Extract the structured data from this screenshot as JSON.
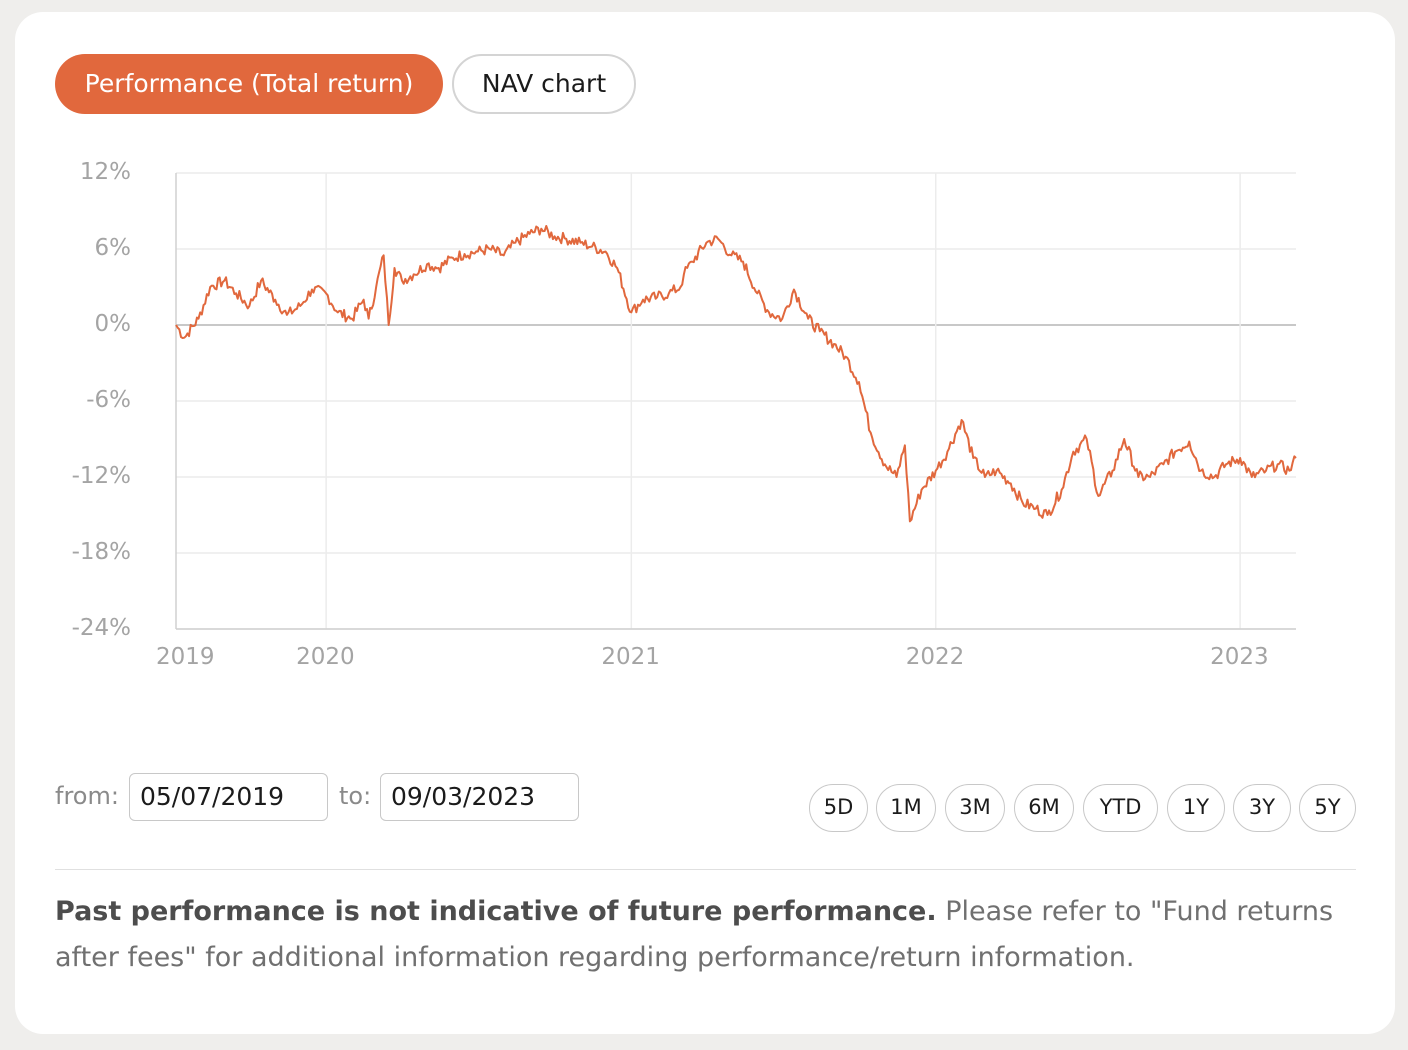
{
  "tabs": {
    "performance": "Performance (Total return)",
    "nav": "NAV chart"
  },
  "chart_data": {
    "type": "line",
    "title": "",
    "xlabel": "",
    "ylabel": "",
    "ylim": [
      -24,
      12
    ],
    "y_ticks": [
      "12%",
      "6%",
      "0%",
      "-6%",
      "-12%",
      "-18%",
      "-24%"
    ],
    "x_ticks": [
      "2019",
      "2020",
      "2021",
      "2022",
      "2023"
    ],
    "grid": true,
    "line_color": "#e1683d",
    "x_range": [
      "2019-07-05",
      "2023-03-09"
    ],
    "series": [
      {
        "x": [
          "2019-07-05",
          "2019-07-15",
          "2019-08-01",
          "2019-08-15",
          "2019-09-01",
          "2019-09-15",
          "2019-10-01",
          "2019-10-15",
          "2019-11-01",
          "2019-11-15",
          "2019-12-01",
          "2019-12-15",
          "2020-01-01",
          "2020-01-15",
          "2020-02-01",
          "2020-02-15",
          "2020-02-21",
          "2020-03-01",
          "2020-03-10",
          "2020-03-16",
          "2020-03-23",
          "2020-04-01",
          "2020-04-15",
          "2020-05-01",
          "2020-05-15",
          "2020-06-01",
          "2020-06-15",
          "2020-07-01",
          "2020-07-15",
          "2020-08-01",
          "2020-08-15",
          "2020-09-01",
          "2020-09-15",
          "2020-10-01",
          "2020-10-15",
          "2020-11-01",
          "2020-11-15",
          "2020-12-01",
          "2020-12-15",
          "2021-01-01",
          "2021-01-15",
          "2021-02-01",
          "2021-02-15",
          "2021-03-01",
          "2021-03-05",
          "2021-03-15",
          "2021-04-01",
          "2021-04-15",
          "2021-05-01",
          "2021-05-15",
          "2021-06-01",
          "2021-06-15",
          "2021-07-01",
          "2021-07-15",
          "2021-08-01",
          "2021-08-15",
          "2021-09-01",
          "2021-09-15",
          "2021-10-01",
          "2021-10-15",
          "2021-11-01",
          "2021-11-15",
          "2021-11-25",
          "2021-12-01",
          "2021-12-15",
          "2022-01-01",
          "2022-01-15",
          "2022-02-01",
          "2022-02-15",
          "2022-03-01",
          "2022-03-15",
          "2022-04-01",
          "2022-04-15",
          "2022-05-01",
          "2022-05-15",
          "2022-06-01",
          "2022-06-15",
          "2022-07-01",
          "2022-07-15",
          "2022-08-01",
          "2022-08-15",
          "2022-09-01",
          "2022-09-15",
          "2022-10-01",
          "2022-10-15",
          "2022-11-01",
          "2022-11-15",
          "2022-12-01",
          "2022-12-15",
          "2023-01-01",
          "2023-01-15",
          "2023-02-01",
          "2023-02-15",
          "2023-03-01",
          "2023-03-09"
        ],
        "values": [
          0.0,
          -1.0,
          0.5,
          3.0,
          3.5,
          2.5,
          1.5,
          3.5,
          2.0,
          0.8,
          1.5,
          2.8,
          2.5,
          1.0,
          0.5,
          2.0,
          0.5,
          3.0,
          5.5,
          0.0,
          4.5,
          3.5,
          4.0,
          4.8,
          4.5,
          5.3,
          5.6,
          5.8,
          6.0,
          5.5,
          6.5,
          7.2,
          7.6,
          7.0,
          6.8,
          6.5,
          6.2,
          5.8,
          4.5,
          1.0,
          2.0,
          2.2,
          2.5,
          3.0,
          4.0,
          5.0,
          6.5,
          6.8,
          5.5,
          5.0,
          2.5,
          1.0,
          0.5,
          2.8,
          0.5,
          -0.5,
          -1.5,
          -2.5,
          -4.5,
          -8.5,
          -11.0,
          -12.0,
          -9.5,
          -15.5,
          -13.0,
          -11.5,
          -10.0,
          -7.5,
          -10.5,
          -12.0,
          -11.5,
          -12.5,
          -14.0,
          -14.5,
          -15.0,
          -13.0,
          -10.0,
          -9.0,
          -13.5,
          -11.5,
          -9.0,
          -12.0,
          -12.0,
          -11.0,
          -10.0,
          -9.2,
          -11.5,
          -12.0,
          -11.0,
          -10.5,
          -12.0,
          -11.5,
          -11.0,
          -11.5,
          -10.5
        ],
        "values_note": ""
      }
    ]
  },
  "filters": {
    "from_label": "from:",
    "from_value": "05/07/2019",
    "to_label": "to:",
    "to_value": "09/03/2023",
    "ranges": [
      "5D",
      "1M",
      "3M",
      "6M",
      "YTD",
      "1Y",
      "3Y",
      "5Y"
    ]
  },
  "disclaimer": {
    "bold": "Past performance is not indicative of future performance.",
    "text": " Please refer to \"Fund returns after fees\" for additional information regarding performance/return information."
  }
}
